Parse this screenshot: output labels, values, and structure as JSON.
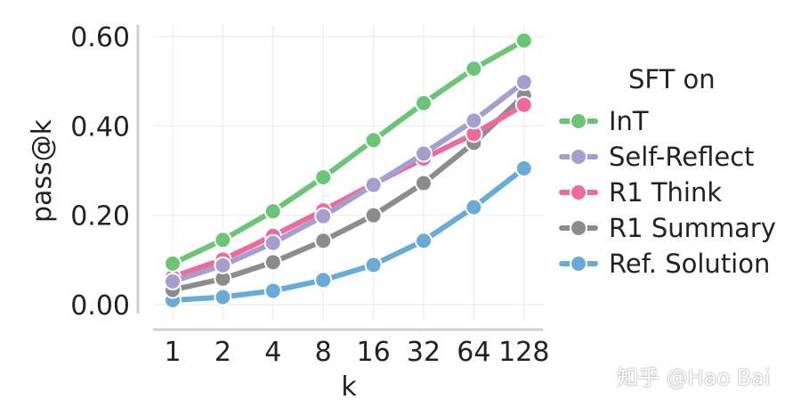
{
  "chart_data": {
    "type": "line",
    "title": "",
    "xlabel": "k",
    "ylabel": "pass@k",
    "categories": [
      "1",
      "2",
      "4",
      "8",
      "16",
      "32",
      "64",
      "128"
    ],
    "ylim": [
      0.0,
      0.6
    ],
    "yticks": [
      "0.00",
      "0.20",
      "0.40",
      "0.60"
    ],
    "grid": true,
    "legend_title": "SFT on",
    "legend_position": "right",
    "series": [
      {
        "name": "InT",
        "color": "#6cc576",
        "values": [
          0.092,
          0.145,
          0.209,
          0.285,
          0.368,
          0.451,
          0.528,
          0.591
        ]
      },
      {
        "name": "Self-Reflect",
        "color": "#a49fce",
        "values": [
          0.052,
          0.088,
          0.138,
          0.198,
          0.268,
          0.338,
          0.412,
          0.498
        ]
      },
      {
        "name": "R1 Think",
        "color": "#ee6a9b",
        "values": [
          0.062,
          0.101,
          0.154,
          0.211,
          0.27,
          0.327,
          0.382,
          0.447
        ]
      },
      {
        "name": "R1 Summary",
        "color": "#8c8c8c",
        "values": [
          0.033,
          0.058,
          0.095,
          0.143,
          0.2,
          0.272,
          0.362,
          0.468
        ]
      },
      {
        "name": "Ref. Solution",
        "color": "#68abd6",
        "values": [
          0.01,
          0.017,
          0.031,
          0.055,
          0.089,
          0.143,
          0.218,
          0.305
        ]
      }
    ]
  },
  "watermark": "知乎 @Hao Bai"
}
